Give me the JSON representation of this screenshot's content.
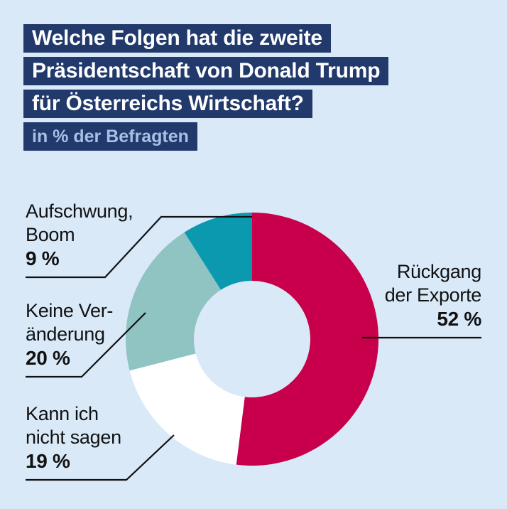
{
  "title_lines": [
    "Welche Folgen hat die zweite",
    "Präsidentschaft von Donald Trump",
    "für Österreichs Wirtschaft?"
  ],
  "subtitle": "in % der Befragten",
  "chart_data": {
    "type": "pie",
    "variant": "donut",
    "title": "Welche Folgen hat die zweite Präsidentschaft von Donald Trump für Österreichs Wirtschaft?",
    "unit": "in % der Befragten",
    "categories": [
      "Rückgang der Exporte",
      "Kann ich nicht sagen",
      "Keine Veränderung",
      "Aufschwung, Boom"
    ],
    "values": [
      52,
      19,
      20,
      9
    ],
    "colors": [
      "#c8004b",
      "#ffffff",
      "#8fc4c2",
      "#0b99b0"
    ],
    "start": "12 o'clock",
    "direction": "clockwise"
  },
  "labels": {
    "exports": {
      "text": "Rückgang\nder Exporte",
      "pct": "52 %"
    },
    "unsure": {
      "text": "Kann ich\nnicht sagen",
      "pct": "19 %"
    },
    "nochange": {
      "text": "Keine Ver-\nänderung",
      "pct": "20 %"
    },
    "boom": {
      "text": "Aufschwung,\nBoom",
      "pct": "9 %"
    }
  }
}
